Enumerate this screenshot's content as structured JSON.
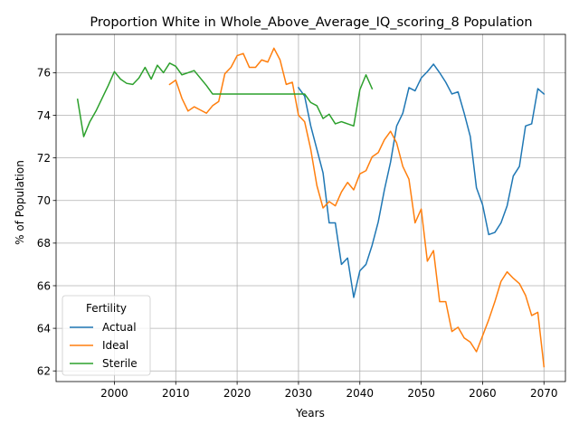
{
  "chart_data": {
    "type": "line",
    "title": "Proportion White in Whole_Above_Average_IQ_scoring_8 Population",
    "xlabel": "Years",
    "ylabel": "% of Population",
    "xlim": [
      1990.5,
      2073.5
    ],
    "ylim": [
      61.5,
      77.8
    ],
    "xticks": [
      2000,
      2010,
      2020,
      2030,
      2040,
      2050,
      2060,
      2070
    ],
    "yticks": [
      62,
      64,
      66,
      68,
      70,
      72,
      74,
      76
    ],
    "grid": true,
    "legend": {
      "title": "Fertility",
      "placement": "lower-left"
    },
    "series": [
      {
        "name": "Actual",
        "color": "#1f77b4",
        "x": [
          2030,
          2031,
          2032,
          2033,
          2034,
          2035,
          2036,
          2037,
          2038,
          2039,
          2040,
          2041,
          2042,
          2043,
          2044,
          2045,
          2046,
          2047,
          2048,
          2049,
          2050,
          2051,
          2052,
          2053,
          2054,
          2055,
          2056,
          2057,
          2058,
          2059,
          2060,
          2061,
          2062,
          2063,
          2064,
          2065,
          2066,
          2067,
          2068,
          2069,
          2070
        ],
        "y": [
          75.3,
          74.9,
          73.5,
          72.4,
          71.3,
          68.95,
          68.95,
          67.0,
          67.3,
          65.45,
          66.7,
          67.0,
          67.9,
          69.0,
          70.5,
          71.8,
          73.5,
          74.1,
          75.3,
          75.15,
          75.75,
          76.05,
          76.4,
          76.0,
          75.55,
          75.0,
          75.1,
          74.1,
          73.0,
          70.6,
          69.8,
          68.4,
          68.5,
          68.95,
          69.75,
          71.15,
          71.6,
          73.5,
          73.6,
          75.25,
          75.0
        ]
      },
      {
        "name": "Ideal",
        "color": "#ff7f0e",
        "x": [
          2009,
          2010,
          2011,
          2012,
          2013,
          2014,
          2015,
          2016,
          2017,
          2018,
          2019,
          2020,
          2021,
          2022,
          2023,
          2024,
          2025,
          2026,
          2027,
          2028,
          2029,
          2030,
          2031,
          2032,
          2033,
          2034,
          2035,
          2036,
          2037,
          2038,
          2039,
          2040,
          2041,
          2042,
          2043,
          2044,
          2045,
          2046,
          2047,
          2048,
          2049,
          2050,
          2051,
          2052,
          2053,
          2054,
          2055,
          2056,
          2057,
          2058,
          2059,
          2060,
          2061,
          2062,
          2063,
          2064,
          2065,
          2066,
          2067,
          2068,
          2069,
          2070
        ],
        "y": [
          75.45,
          75.65,
          74.8,
          74.2,
          74.4,
          74.25,
          74.1,
          74.45,
          74.65,
          75.95,
          76.25,
          76.8,
          76.9,
          76.25,
          76.25,
          76.6,
          76.5,
          77.15,
          76.6,
          75.45,
          75.55,
          74.0,
          73.7,
          72.4,
          70.7,
          69.65,
          69.95,
          69.75,
          70.4,
          70.85,
          70.5,
          71.25,
          71.4,
          72.05,
          72.25,
          72.85,
          73.25,
          72.7,
          71.6,
          71.0,
          68.95,
          69.6,
          67.15,
          67.65,
          65.25,
          65.25,
          63.85,
          64.05,
          63.55,
          63.35,
          62.9,
          63.65,
          64.4,
          65.25,
          66.2,
          66.65,
          66.35,
          66.1,
          65.55,
          64.6,
          64.75,
          62.2
        ]
      },
      {
        "name": "Sterile",
        "color": "#2ca02c",
        "x": [
          1994,
          1995,
          1996,
          1997,
          1998,
          1999,
          2000,
          2001,
          2002,
          2003,
          2004,
          2005,
          2006,
          2007,
          2008,
          2009,
          2010,
          2011,
          2012,
          2013,
          2014,
          2015,
          2016,
          2017,
          2018,
          2019,
          2020,
          2021,
          2022,
          2023,
          2024,
          2025,
          2026,
          2027,
          2028,
          2029,
          2030,
          2031,
          2032,
          2033,
          2034,
          2035,
          2036,
          2037,
          2038,
          2039,
          2040,
          2041,
          2042
        ],
        "y": [
          74.75,
          73.0,
          73.7,
          74.2,
          74.8,
          75.4,
          76.05,
          75.7,
          75.5,
          75.45,
          75.75,
          76.25,
          75.7,
          76.35,
          76.0,
          76.45,
          76.3,
          75.9,
          76.0,
          76.1,
          75.75,
          75.4,
          75.0,
          75.0,
          75.0,
          75.0,
          75.0,
          75.0,
          75.0,
          75.0,
          75.0,
          75.0,
          75.0,
          75.0,
          75.0,
          75.0,
          75.0,
          75.0,
          74.6,
          74.45,
          73.85,
          74.05,
          73.6,
          73.7,
          73.6,
          73.5,
          75.2,
          75.9,
          75.25
        ]
      }
    ]
  }
}
